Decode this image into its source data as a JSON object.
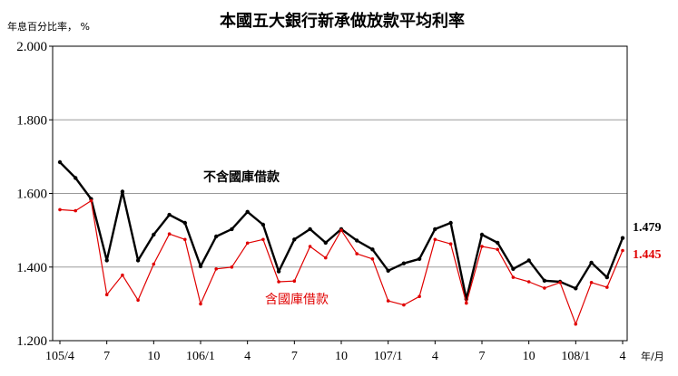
{
  "chart_data": {
    "type": "line",
    "title": "本國五大銀行新承做放款平均利率",
    "ylabel": "年息百分比率， %",
    "xlabel": "年/月",
    "ylim": [
      1.2,
      2.0
    ],
    "yticks": [
      "2.000",
      "1.800",
      "1.600",
      "1.400",
      "1.200"
    ],
    "ytick_values": [
      2.0,
      1.8,
      1.6,
      1.4,
      1.2
    ],
    "grid": true,
    "categories": [
      "105/4",
      "105/5",
      "105/6",
      "105/7",
      "105/8",
      "105/9",
      "105/10",
      "105/11",
      "105/12",
      "106/1",
      "106/2",
      "106/3",
      "106/4",
      "106/5",
      "106/6",
      "106/7",
      "106/8",
      "106/9",
      "106/10",
      "106/11",
      "106/12",
      "107/1",
      "107/2",
      "107/3",
      "107/4",
      "107/5",
      "107/6",
      "107/7",
      "107/8",
      "107/9",
      "107/10",
      "107/11",
      "107/12",
      "108/1",
      "108/2",
      "108/3",
      "108/4"
    ],
    "xtick_labels": [
      {
        "index": 0,
        "label": "105/4"
      },
      {
        "index": 3,
        "label": "7"
      },
      {
        "index": 6,
        "label": "10"
      },
      {
        "index": 9,
        "label": "106/1"
      },
      {
        "index": 12,
        "label": "4"
      },
      {
        "index": 15,
        "label": "7"
      },
      {
        "index": 18,
        "label": "10"
      },
      {
        "index": 21,
        "label": "107/1"
      },
      {
        "index": 24,
        "label": "4"
      },
      {
        "index": 27,
        "label": "7"
      },
      {
        "index": 30,
        "label": "10"
      },
      {
        "index": 33,
        "label": "108/1"
      },
      {
        "index": 36,
        "label": "4"
      }
    ],
    "series": [
      {
        "name": "不含國庫借款",
        "color": "#000000",
        "values": [
          1.685,
          1.642,
          1.585,
          1.418,
          1.605,
          1.418,
          1.488,
          1.542,
          1.52,
          1.402,
          1.483,
          1.503,
          1.55,
          1.515,
          1.388,
          1.475,
          1.503,
          1.466,
          1.503,
          1.472,
          1.448,
          1.39,
          1.41,
          1.422,
          1.503,
          1.52,
          1.313,
          1.488,
          1.466,
          1.395,
          1.418,
          1.363,
          1.36,
          1.342,
          1.412,
          1.372,
          1.479
        ],
        "end_label": "1.479"
      },
      {
        "name": "含國庫借款",
        "color": "#e00000",
        "values": [
          1.556,
          1.553,
          1.58,
          1.325,
          1.378,
          1.31,
          1.408,
          1.49,
          1.475,
          1.3,
          1.395,
          1.4,
          1.465,
          1.475,
          1.36,
          1.362,
          1.456,
          1.425,
          1.5,
          1.436,
          1.422,
          1.308,
          1.297,
          1.32,
          1.475,
          1.463,
          1.302,
          1.456,
          1.448,
          1.372,
          1.36,
          1.343,
          1.358,
          1.245,
          1.358,
          1.345,
          1.445
        ],
        "end_label": "1.445"
      }
    ]
  }
}
